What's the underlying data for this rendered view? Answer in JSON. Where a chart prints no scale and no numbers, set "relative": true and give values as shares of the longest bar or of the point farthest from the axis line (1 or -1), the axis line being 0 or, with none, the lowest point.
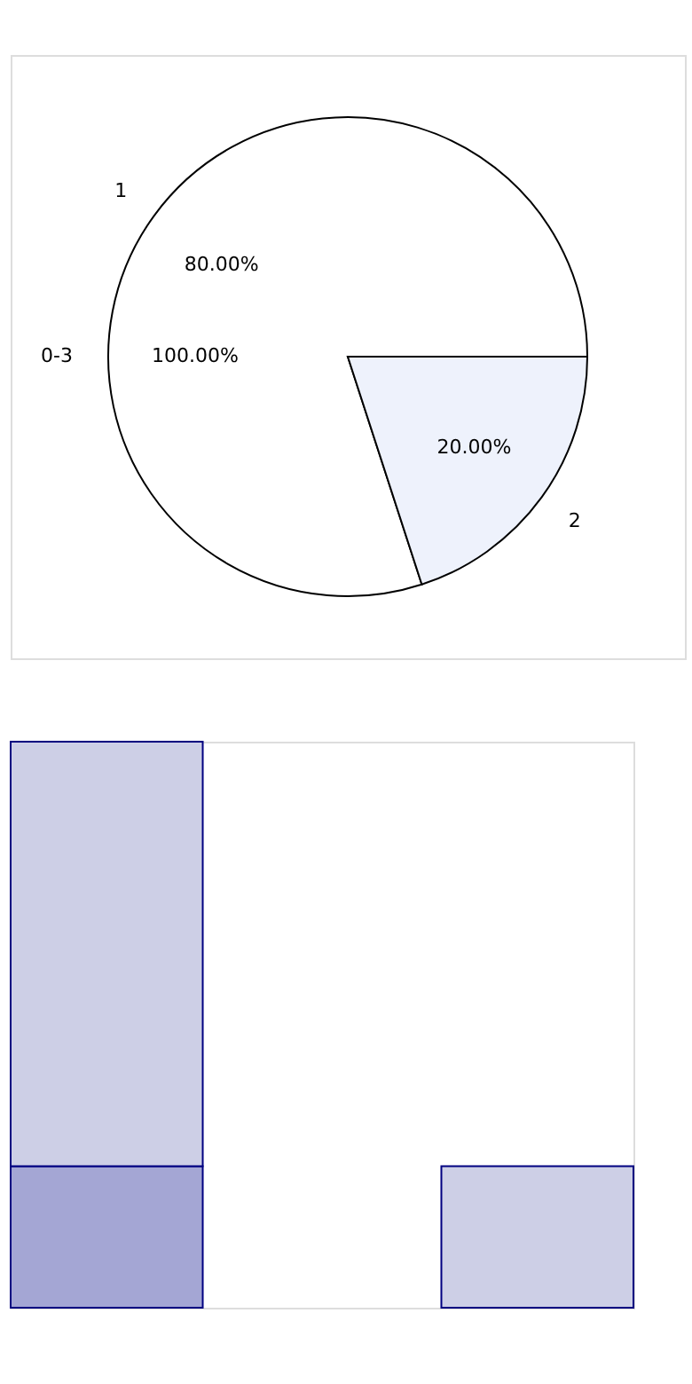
{
  "chart_data": [
    {
      "type": "pie",
      "categories": [
        "1",
        "2"
      ],
      "values": [
        80,
        20
      ],
      "colors": [
        "#ffffff",
        "#eef2fc"
      ],
      "value_labels": [
        "80.00%",
        "20.00%"
      ],
      "annotations": [
        "0-3",
        "100.00%"
      ]
    },
    {
      "type": "bar",
      "relative": true,
      "stacked": true,
      "categories": [
        null,
        null
      ],
      "series": [
        {
          "color": "#a4a6d4",
          "values": [
            0.25,
            0
          ]
        },
        {
          "color": "#cdcfe6",
          "values": [
            0.75,
            0.25
          ]
        }
      ]
    }
  ]
}
